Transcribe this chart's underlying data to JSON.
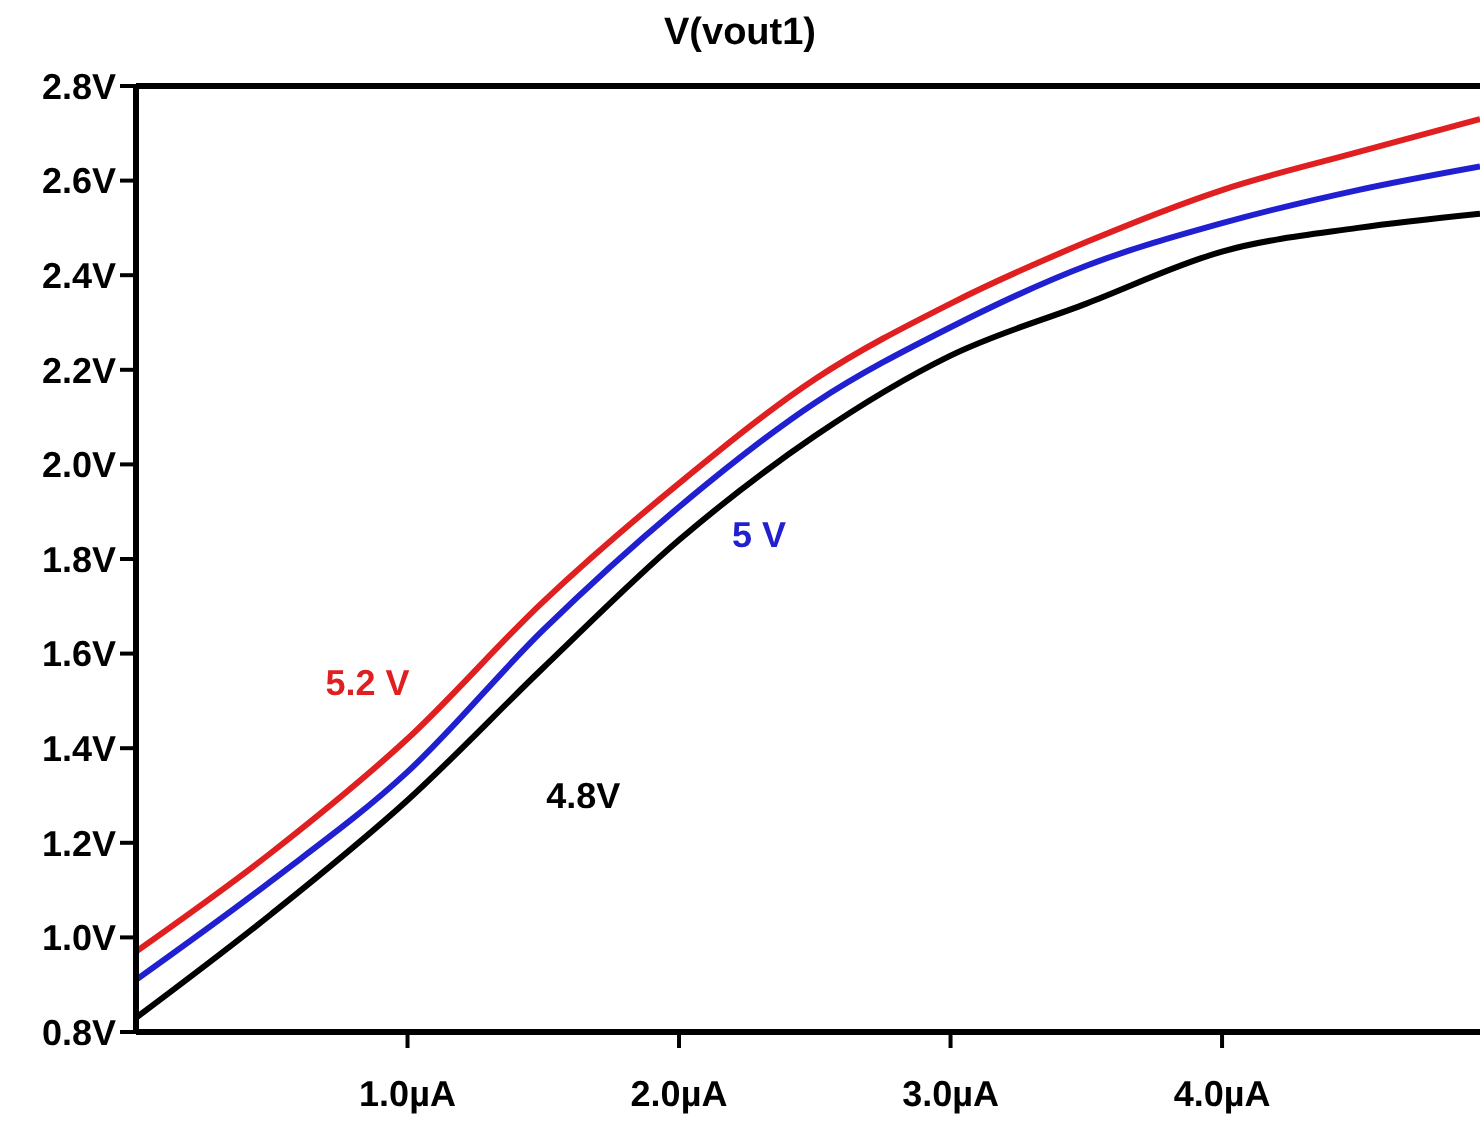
{
  "chart_data": {
    "type": "line",
    "title": "V(vout1)",
    "x": [
      0,
      0.5,
      1,
      1.5,
      2,
      2.5,
      3,
      3.5,
      4,
      4.5,
      4.95
    ],
    "series": [
      {
        "name": "5.2 V",
        "color": "#e02020",
        "values": [
          0.97,
          1.18,
          1.42,
          1.71,
          1.96,
          2.18,
          2.34,
          2.47,
          2.58,
          2.66,
          2.73
        ]
      },
      {
        "name": "5 V",
        "color": "#2020d0",
        "values": [
          0.91,
          1.12,
          1.35,
          1.65,
          1.91,
          2.13,
          2.29,
          2.42,
          2.51,
          2.58,
          2.63
        ]
      },
      {
        "name": "4.8V",
        "color": "#000000",
        "values": [
          0.83,
          1.05,
          1.29,
          1.57,
          1.84,
          2.06,
          2.23,
          2.34,
          2.45,
          2.5,
          2.53
        ]
      }
    ],
    "xlim": [
      0,
      4.95
    ],
    "xticks": [
      {
        "value": 1,
        "label": "1.0µA"
      },
      {
        "value": 2,
        "label": "2.0µA"
      },
      {
        "value": 3,
        "label": "3.0µA"
      },
      {
        "value": 4,
        "label": "4.0µA"
      }
    ],
    "ylim": [
      0.8,
      2.8
    ],
    "yticks": [
      {
        "value": 0.8,
        "label": "0.8V"
      },
      {
        "value": 1,
        "label": "1.0V"
      },
      {
        "value": 1.2,
        "label": "1.2V"
      },
      {
        "value": 1.4,
        "label": "1.4V"
      },
      {
        "value": 1.6,
        "label": "1.6V"
      },
      {
        "value": 1.8,
        "label": "1.8V"
      },
      {
        "value": 2,
        "label": "2.0V"
      },
      {
        "value": 2.2,
        "label": "2.2V"
      },
      {
        "value": 2.4,
        "label": "2.4V"
      },
      {
        "value": 2.6,
        "label": "2.6V"
      },
      {
        "value": 2.8,
        "label": "2.8V"
      }
    ],
    "grid": false,
    "legend": false,
    "marker": "none",
    "line_style": "solid"
  }
}
